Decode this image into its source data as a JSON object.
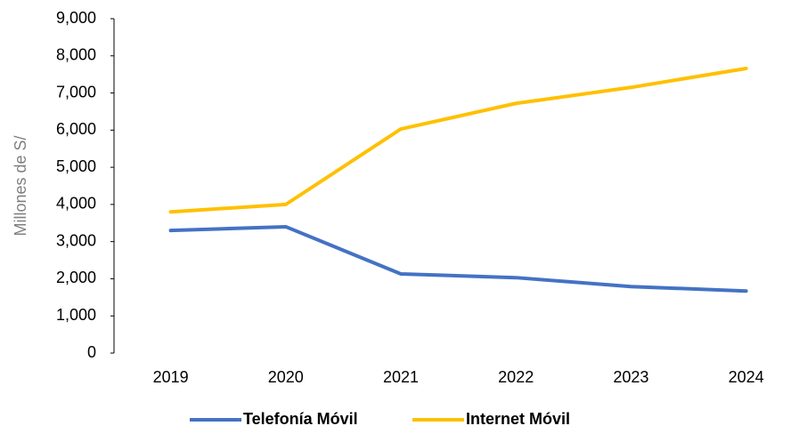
{
  "chart_data": {
    "type": "line",
    "categories": [
      "2019",
      "2020",
      "2021",
      "2022",
      "2023",
      "2024"
    ],
    "series": [
      {
        "name": "Telefonía Móvil",
        "color": "#4472c4",
        "values": [
          3300,
          3400,
          2130,
          2030,
          1790,
          1670
        ]
      },
      {
        "name": "Internet Móvil",
        "color": "#ffc000",
        "values": [
          3800,
          4000,
          6030,
          6720,
          7150,
          7660
        ]
      }
    ],
    "y_label": "Millones de S/",
    "ylim": [
      0,
      9000
    ],
    "yticks": [
      0,
      {
        "value": 1000,
        "label": "1,000"
      },
      {
        "value": 2000,
        "label": "2,000"
      },
      {
        "value": 3000,
        "label": "3,000"
      },
      {
        "value": 4000,
        "label": "4,000"
      },
      {
        "value": 5000,
        "label": "5,000"
      },
      {
        "value": 6000,
        "label": "6,000"
      },
      {
        "value": 7000,
        "label": "7,000"
      },
      {
        "value": 8000,
        "label": "8,000"
      },
      {
        "value": 9000,
        "label": "9,000"
      }
    ],
    "legend": "bottom"
  }
}
